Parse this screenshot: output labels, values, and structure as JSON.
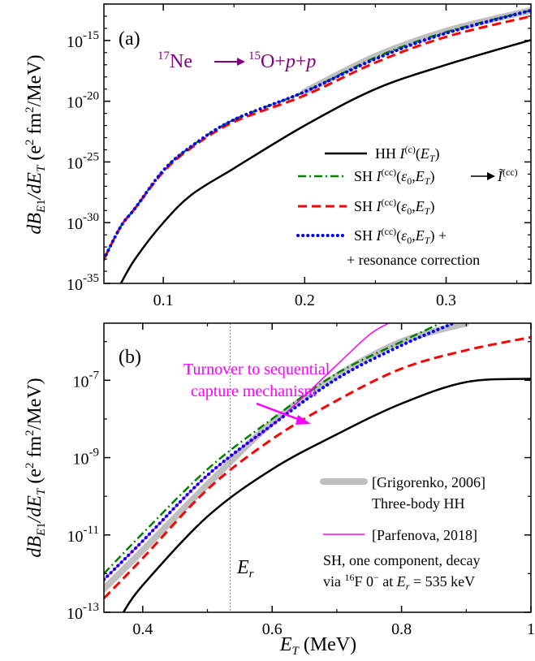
{
  "chart_data": [
    {
      "type": "line",
      "panel_label": "(a)",
      "inset_label": {
        "ne": "17Ne",
        "rest": "15O+p+p",
        "color": "#800080"
      },
      "xlabel": "E_T (MeV)",
      "ylabel": "dB_E1/dE_T (e² fm²/MeV)",
      "x_scale": "linear",
      "y_scale": "log",
      "xlim": [
        0.058,
        0.36
      ],
      "ylim": [
        1e-35,
        1e-12
      ],
      "x_ticks": [
        0.1,
        0.2,
        0.3
      ],
      "x_tick_labels": [
        "0.1",
        "0.2",
        "0.3"
      ],
      "y_ticks": [
        1e-35,
        1e-30,
        1e-25,
        1e-20,
        1e-15
      ],
      "y_tick_labels": [
        {
          "base": "10",
          "exp": "-35"
        },
        {
          "base": "10",
          "exp": "-30"
        },
        {
          "base": "10",
          "exp": "-25"
        },
        {
          "base": "10",
          "exp": "-20"
        },
        {
          "base": "10",
          "exp": "-15"
        }
      ],
      "legend_position": "lower-right",
      "series": [
        {
          "key": "grig",
          "color": "#bfbfbf",
          "style": "thick",
          "x": [
            0.2,
            0.25,
            0.3,
            0.36
          ],
          "y": [
            6e-20,
            5e-17,
            6e-15,
            3e-13
          ]
        },
        {
          "key": "hh",
          "name": "HH",
          "formula": "I(c)(ET)",
          "color": "#000000",
          "style": "solid",
          "x": [
            0.07,
            0.08,
            0.1,
            0.12,
            0.15,
            0.2,
            0.25,
            0.3,
            0.36
          ],
          "y": [
            1e-35,
            1e-33,
            1e-30,
            2e-28,
            3e-26,
            1e-22,
            1e-19,
            1e-17,
            1.1e-15
          ]
        },
        {
          "key": "sh_tilde",
          "name": "SH",
          "formula": "I(cc)(ε0,ET) → Ĩ(cc)",
          "color": "#008000",
          "style": "dashdot",
          "x": [
            0.058,
            0.07,
            0.08,
            0.1,
            0.12,
            0.15,
            0.2,
            0.25,
            0.3,
            0.36
          ],
          "y": [
            1e-33,
            5e-31,
            1.5e-29,
            2e-26,
            2e-24,
            3e-22,
            6e-20,
            4e-17,
            5e-15,
            3e-13
          ]
        },
        {
          "key": "sh",
          "name": "SH",
          "formula": "I(cc)(ε0,ET)",
          "color": "#ff0000",
          "style": "dashed",
          "x": [
            0.058,
            0.07,
            0.08,
            0.1,
            0.12,
            0.15,
            0.2,
            0.25,
            0.3,
            0.36
          ],
          "y": [
            1e-33,
            5e-31,
            1.5e-29,
            1.5e-26,
            1.5e-24,
            2e-22,
            3e-20,
            1.5e-17,
            2e-15,
            1e-13
          ]
        },
        {
          "key": "sh_res",
          "name": "SH",
          "formula": "I(cc)(ε0,ET) +",
          "extra": "+ resonance correction",
          "color": "#0000ff",
          "style": "dotted",
          "x": [
            0.058,
            0.07,
            0.08,
            0.1,
            0.12,
            0.15,
            0.2,
            0.25,
            0.3,
            0.36
          ],
          "y": [
            1e-33,
            5e-31,
            1.5e-29,
            2e-26,
            2e-24,
            3e-22,
            6e-20,
            3e-17,
            4e-15,
            3e-13
          ]
        }
      ]
    },
    {
      "type": "line",
      "panel_label": "(b)",
      "xlabel": "E_T (MeV)",
      "ylabel": "dB_E1/dE_T (e² fm²/MeV)",
      "x_scale": "linear",
      "y_scale": "log",
      "xlim": [
        0.34,
        1.0
      ],
      "ylim": [
        1e-13,
        3e-06
      ],
      "x_ticks": [
        0.4,
        0.6,
        0.8,
        1.0
      ],
      "x_tick_labels": [
        "0.4",
        "0.6",
        "0.8",
        "1"
      ],
      "y_ticks": [
        1e-13,
        1e-11,
        1e-09,
        1e-07
      ],
      "y_tick_labels": [
        {
          "base": "10",
          "exp": "-13"
        },
        {
          "base": "10",
          "exp": "-11"
        },
        {
          "base": "10",
          "exp": "-9"
        },
        {
          "base": "10",
          "exp": "-7"
        }
      ],
      "resonance_energy": 0.535,
      "resonance_label": "Er",
      "annotation": {
        "line1": "Turnover to sequential",
        "line2": "capture mechanism",
        "color": "#ff00ff",
        "points_to": [
          0.585,
          2.5e-08
        ]
      },
      "legend_position": "lower-right",
      "legend_text": {
        "grig": "[Grigorenko, 2006]",
        "grig2": "Three-body HH",
        "parf": "[Parfenova, 2018]",
        "sh1": "SH, one component, decay",
        "sh2": "via 16F 0⁻ at Er = 535 keV"
      },
      "series": [
        {
          "key": "grig",
          "name": "[Grigorenko, 2006] Three-body HH",
          "color": "#bfbfbf",
          "style": "thick",
          "x": [
            0.34,
            0.4,
            0.5,
            0.6,
            0.7,
            0.8,
            0.9
          ],
          "y": [
            4e-13,
            4e-12,
            2e-10,
            8e-09,
            1.3e-07,
            1e-06,
            3e-06
          ]
        },
        {
          "key": "hh",
          "name": "HH",
          "color": "#000000",
          "style": "solid",
          "x": [
            0.37,
            0.4,
            0.5,
            0.6,
            0.7,
            0.8,
            0.9,
            1.0
          ],
          "y": [
            1e-13,
            5e-13,
            3e-11,
            5e-10,
            4e-09,
            2.5e-08,
            9e-08,
            1.1e-07
          ]
        },
        {
          "key": "sh_tilde",
          "name": "SH tilde",
          "color": "#008000",
          "style": "dashdot",
          "x": [
            0.34,
            0.4,
            0.5,
            0.6,
            0.7,
            0.8,
            0.86
          ],
          "y": [
            1e-12,
            1.1e-11,
            5e-10,
            1e-08,
            1.5e-07,
            1e-06,
            3e-06
          ]
        },
        {
          "key": "parf",
          "name": "[Parfenova, 2018]",
          "color": "#ff00ff",
          "style": "thin",
          "x": [
            0.34,
            0.4,
            0.5,
            0.6,
            0.65,
            0.7,
            0.75,
            0.78
          ],
          "y": [
            7e-13,
            7e-12,
            3.5e-10,
            7e-09,
            4e-08,
            2.5e-07,
            1.5e-06,
            3e-06
          ]
        },
        {
          "key": "sh_res",
          "name": "SH + resonance correction",
          "color": "#0000ff",
          "style": "dotted",
          "x": [
            0.34,
            0.4,
            0.5,
            0.6,
            0.7,
            0.8,
            0.88
          ],
          "y": [
            7e-13,
            7e-12,
            3.5e-10,
            7e-09,
            1.1e-07,
            8e-07,
            3e-06
          ]
        },
        {
          "key": "sh",
          "name": "SH",
          "color": "#ff0000",
          "style": "dashed",
          "x": [
            0.34,
            0.4,
            0.5,
            0.6,
            0.7,
            0.8,
            0.9,
            1.0
          ],
          "y": [
            2.3e-13,
            2.5e-12,
            1.5e-10,
            3e-09,
            3e-08,
            2e-07,
            6e-07,
            1.3e-06
          ]
        }
      ]
    }
  ]
}
